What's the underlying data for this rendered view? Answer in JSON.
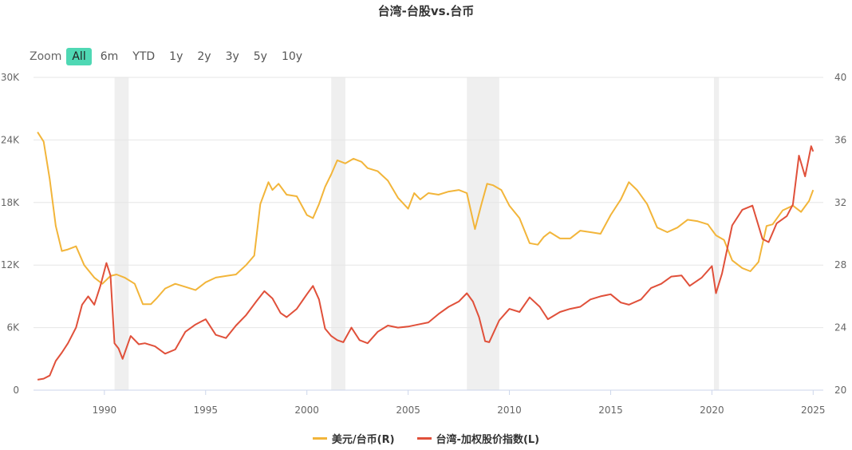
{
  "chart_data": {
    "type": "line",
    "title": "台湾-台股vs.台币",
    "x_range": [
      1986.5,
      2025.5
    ],
    "x_ticks": [
      "1990",
      "1995",
      "2000",
      "2005",
      "2010",
      "2015",
      "2020",
      "2025"
    ],
    "x_tick_values": [
      1990,
      1995,
      2000,
      2005,
      2010,
      2015,
      2020,
      2025
    ],
    "y_left": {
      "ylim": [
        0,
        30000
      ],
      "ticks": [
        "0",
        "6K",
        "12K",
        "18K",
        "24K",
        "30K"
      ],
      "tick_values": [
        0,
        6000,
        12000,
        18000,
        24000,
        30000
      ]
    },
    "y_right": {
      "ylim": [
        20,
        40
      ],
      "ticks": [
        "20",
        "24",
        "28",
        "32",
        "36",
        "40"
      ],
      "tick_values": [
        20,
        24,
        28,
        32,
        36,
        40
      ]
    },
    "shaded_periods": [
      [
        1990.5,
        1991.2
      ],
      [
        2001.2,
        2001.9
      ],
      [
        2007.9,
        2009.5
      ],
      [
        2020.1,
        2020.35
      ]
    ],
    "grid": true,
    "legend_position": "bottom-center",
    "series": [
      {
        "name": "美元/台币(R)",
        "axis": "right",
        "color": "#f2b53a",
        "x": [
          1986.7,
          1987.0,
          1987.3,
          1987.6,
          1987.9,
          1988.2,
          1988.6,
          1989.0,
          1989.5,
          1989.9,
          1990.3,
          1990.6,
          1991.0,
          1991.5,
          1991.9,
          1992.3,
          1992.6,
          1993.0,
          1993.5,
          1994.0,
          1994.5,
          1995.0,
          1995.5,
          1996.0,
          1996.5,
          1997.0,
          1997.4,
          1997.7,
          1997.9,
          1998.1,
          1998.3,
          1998.6,
          1999.0,
          1999.5,
          2000.0,
          2000.3,
          2000.6,
          2000.9,
          2001.2,
          2001.5,
          2001.9,
          2002.3,
          2002.7,
          2003.0,
          2003.5,
          2004.0,
          2004.5,
          2005.0,
          2005.3,
          2005.6,
          2006.0,
          2006.5,
          2007.0,
          2007.5,
          2007.9,
          2008.3,
          2008.6,
          2008.9,
          2009.2,
          2009.6,
          2010.0,
          2010.5,
          2011.0,
          2011.4,
          2011.7,
          2012.0,
          2012.5,
          2013.0,
          2013.5,
          2014.0,
          2014.5,
          2015.0,
          2015.5,
          2015.9,
          2016.3,
          2016.8,
          2017.3,
          2017.8,
          2018.3,
          2018.8,
          2019.3,
          2019.8,
          2020.2,
          2020.6,
          2021.0,
          2021.5,
          2021.9,
          2022.3,
          2022.7,
          2023.0,
          2023.5,
          2024.0,
          2024.4,
          2024.8,
          2025.0
        ],
        "y": [
          36.5,
          35.9,
          33.5,
          30.5,
          28.9,
          29.0,
          29.2,
          28.0,
          27.2,
          26.8,
          27.3,
          27.4,
          27.2,
          26.8,
          25.5,
          25.5,
          25.9,
          26.5,
          26.8,
          26.6,
          26.4,
          26.9,
          27.2,
          27.3,
          27.4,
          28.0,
          28.6,
          31.9,
          32.6,
          33.3,
          32.8,
          33.2,
          32.5,
          32.4,
          31.2,
          31.0,
          31.9,
          33.0,
          33.8,
          34.7,
          34.5,
          34.8,
          34.6,
          34.2,
          34.0,
          33.4,
          32.3,
          31.6,
          32.6,
          32.2,
          32.6,
          32.5,
          32.7,
          32.8,
          32.6,
          30.3,
          31.8,
          33.2,
          33.1,
          32.8,
          31.8,
          31.0,
          29.4,
          29.3,
          29.8,
          30.1,
          29.7,
          29.7,
          30.2,
          30.1,
          30.0,
          31.2,
          32.2,
          33.3,
          32.8,
          31.9,
          30.4,
          30.1,
          30.4,
          30.9,
          30.8,
          30.6,
          29.9,
          29.6,
          28.3,
          27.8,
          27.6,
          28.2,
          30.5,
          30.6,
          31.5,
          31.8,
          31.4,
          32.1,
          32.8
        ]
      },
      {
        "name": "台湾-加权股价指数(L)",
        "axis": "left",
        "color": "#e0503a",
        "x": [
          1986.7,
          1987.0,
          1987.3,
          1987.6,
          1987.9,
          1988.2,
          1988.6,
          1988.9,
          1989.2,
          1989.5,
          1989.8,
          1990.1,
          1990.3,
          1990.5,
          1990.7,
          1990.9,
          1991.3,
          1991.7,
          1992.0,
          1992.5,
          1993.0,
          1993.5,
          1994.0,
          1994.5,
          1995.0,
          1995.5,
          1996.0,
          1996.5,
          1997.0,
          1997.5,
          1997.9,
          1998.3,
          1998.7,
          1999.0,
          1999.5,
          2000.0,
          2000.3,
          2000.6,
          2000.9,
          2001.2,
          2001.5,
          2001.8,
          2002.2,
          2002.6,
          2003.0,
          2003.5,
          2004.0,
          2004.5,
          2005.0,
          2005.5,
          2006.0,
          2006.5,
          2007.0,
          2007.5,
          2007.9,
          2008.2,
          2008.5,
          2008.8,
          2009.0,
          2009.5,
          2010.0,
          2010.5,
          2011.0,
          2011.5,
          2011.9,
          2012.5,
          2013.0,
          2013.5,
          2014.0,
          2014.5,
          2015.0,
          2015.5,
          2015.9,
          2016.5,
          2017.0,
          2017.5,
          2018.0,
          2018.5,
          2018.9,
          2019.5,
          2020.0,
          2020.2,
          2020.5,
          2021.0,
          2021.5,
          2022.0,
          2022.5,
          2022.8,
          2023.2,
          2023.7,
          2024.0,
          2024.3,
          2024.6,
          2024.9,
          2025.0
        ],
        "y": [
          1000,
          1100,
          1400,
          2800,
          3600,
          4500,
          6000,
          8200,
          9000,
          8200,
          10000,
          12200,
          11000,
          4500,
          4000,
          3000,
          5200,
          4400,
          4500,
          4200,
          3500,
          3900,
          5600,
          6300,
          6800,
          5300,
          5000,
          6200,
          7200,
          8500,
          9500,
          8800,
          7400,
          7000,
          7800,
          9200,
          10000,
          8700,
          5900,
          5200,
          4800,
          4600,
          6000,
          4800,
          4500,
          5600,
          6200,
          6000,
          6100,
          6300,
          6500,
          7300,
          8000,
          8500,
          9300,
          8500,
          7000,
          4700,
          4600,
          6700,
          7800,
          7500,
          8900,
          8000,
          6800,
          7500,
          7800,
          8000,
          8700,
          9000,
          9200,
          8400,
          8200,
          8700,
          9800,
          10200,
          10900,
          11000,
          10000,
          10800,
          11900,
          9300,
          11200,
          15800,
          17300,
          17700,
          14500,
          14200,
          16000,
          16700,
          17800,
          22500,
          20500,
          23400,
          22900
        ]
      }
    ]
  },
  "ui": {
    "title": "台湾-台股vs.台币",
    "zoom_label": "Zoom",
    "zoom_buttons": [
      "All",
      "6m",
      "YTD",
      "1y",
      "2y",
      "3y",
      "5y",
      "10y"
    ],
    "zoom_active": "All",
    "legend": [
      "美元/台币(R)",
      "台湾-加权股价指数(L)"
    ]
  }
}
